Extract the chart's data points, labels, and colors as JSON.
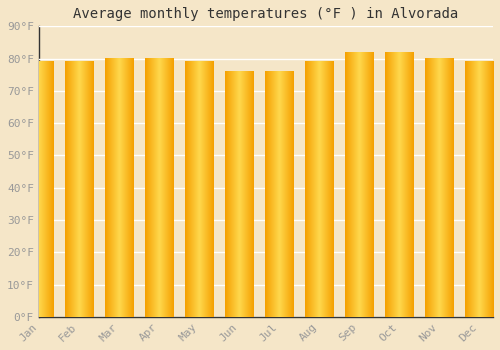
{
  "title": "Average monthly temperatures (°F ) in Alvorada",
  "months": [
    "Jan",
    "Feb",
    "Mar",
    "Apr",
    "May",
    "Jun",
    "Jul",
    "Aug",
    "Sep",
    "Oct",
    "Nov",
    "Dec"
  ],
  "values": [
    79,
    79,
    80,
    80,
    79,
    76,
    76,
    79,
    82,
    82,
    80,
    79
  ],
  "bar_color_center": "#FFD84D",
  "bar_color_edge": "#F5A000",
  "background_color": "#F5E6C8",
  "grid_color": "#E0D5C0",
  "ylim": [
    0,
    90
  ],
  "yticks": [
    0,
    10,
    20,
    30,
    40,
    50,
    60,
    70,
    80,
    90
  ],
  "ytick_labels": [
    "0°F",
    "10°F",
    "20°F",
    "30°F",
    "40°F",
    "50°F",
    "60°F",
    "70°F",
    "80°F",
    "90°F"
  ],
  "title_fontsize": 10,
  "tick_fontsize": 8,
  "tick_font_color": "#999999",
  "bar_width": 0.7,
  "spine_color": "#333333"
}
